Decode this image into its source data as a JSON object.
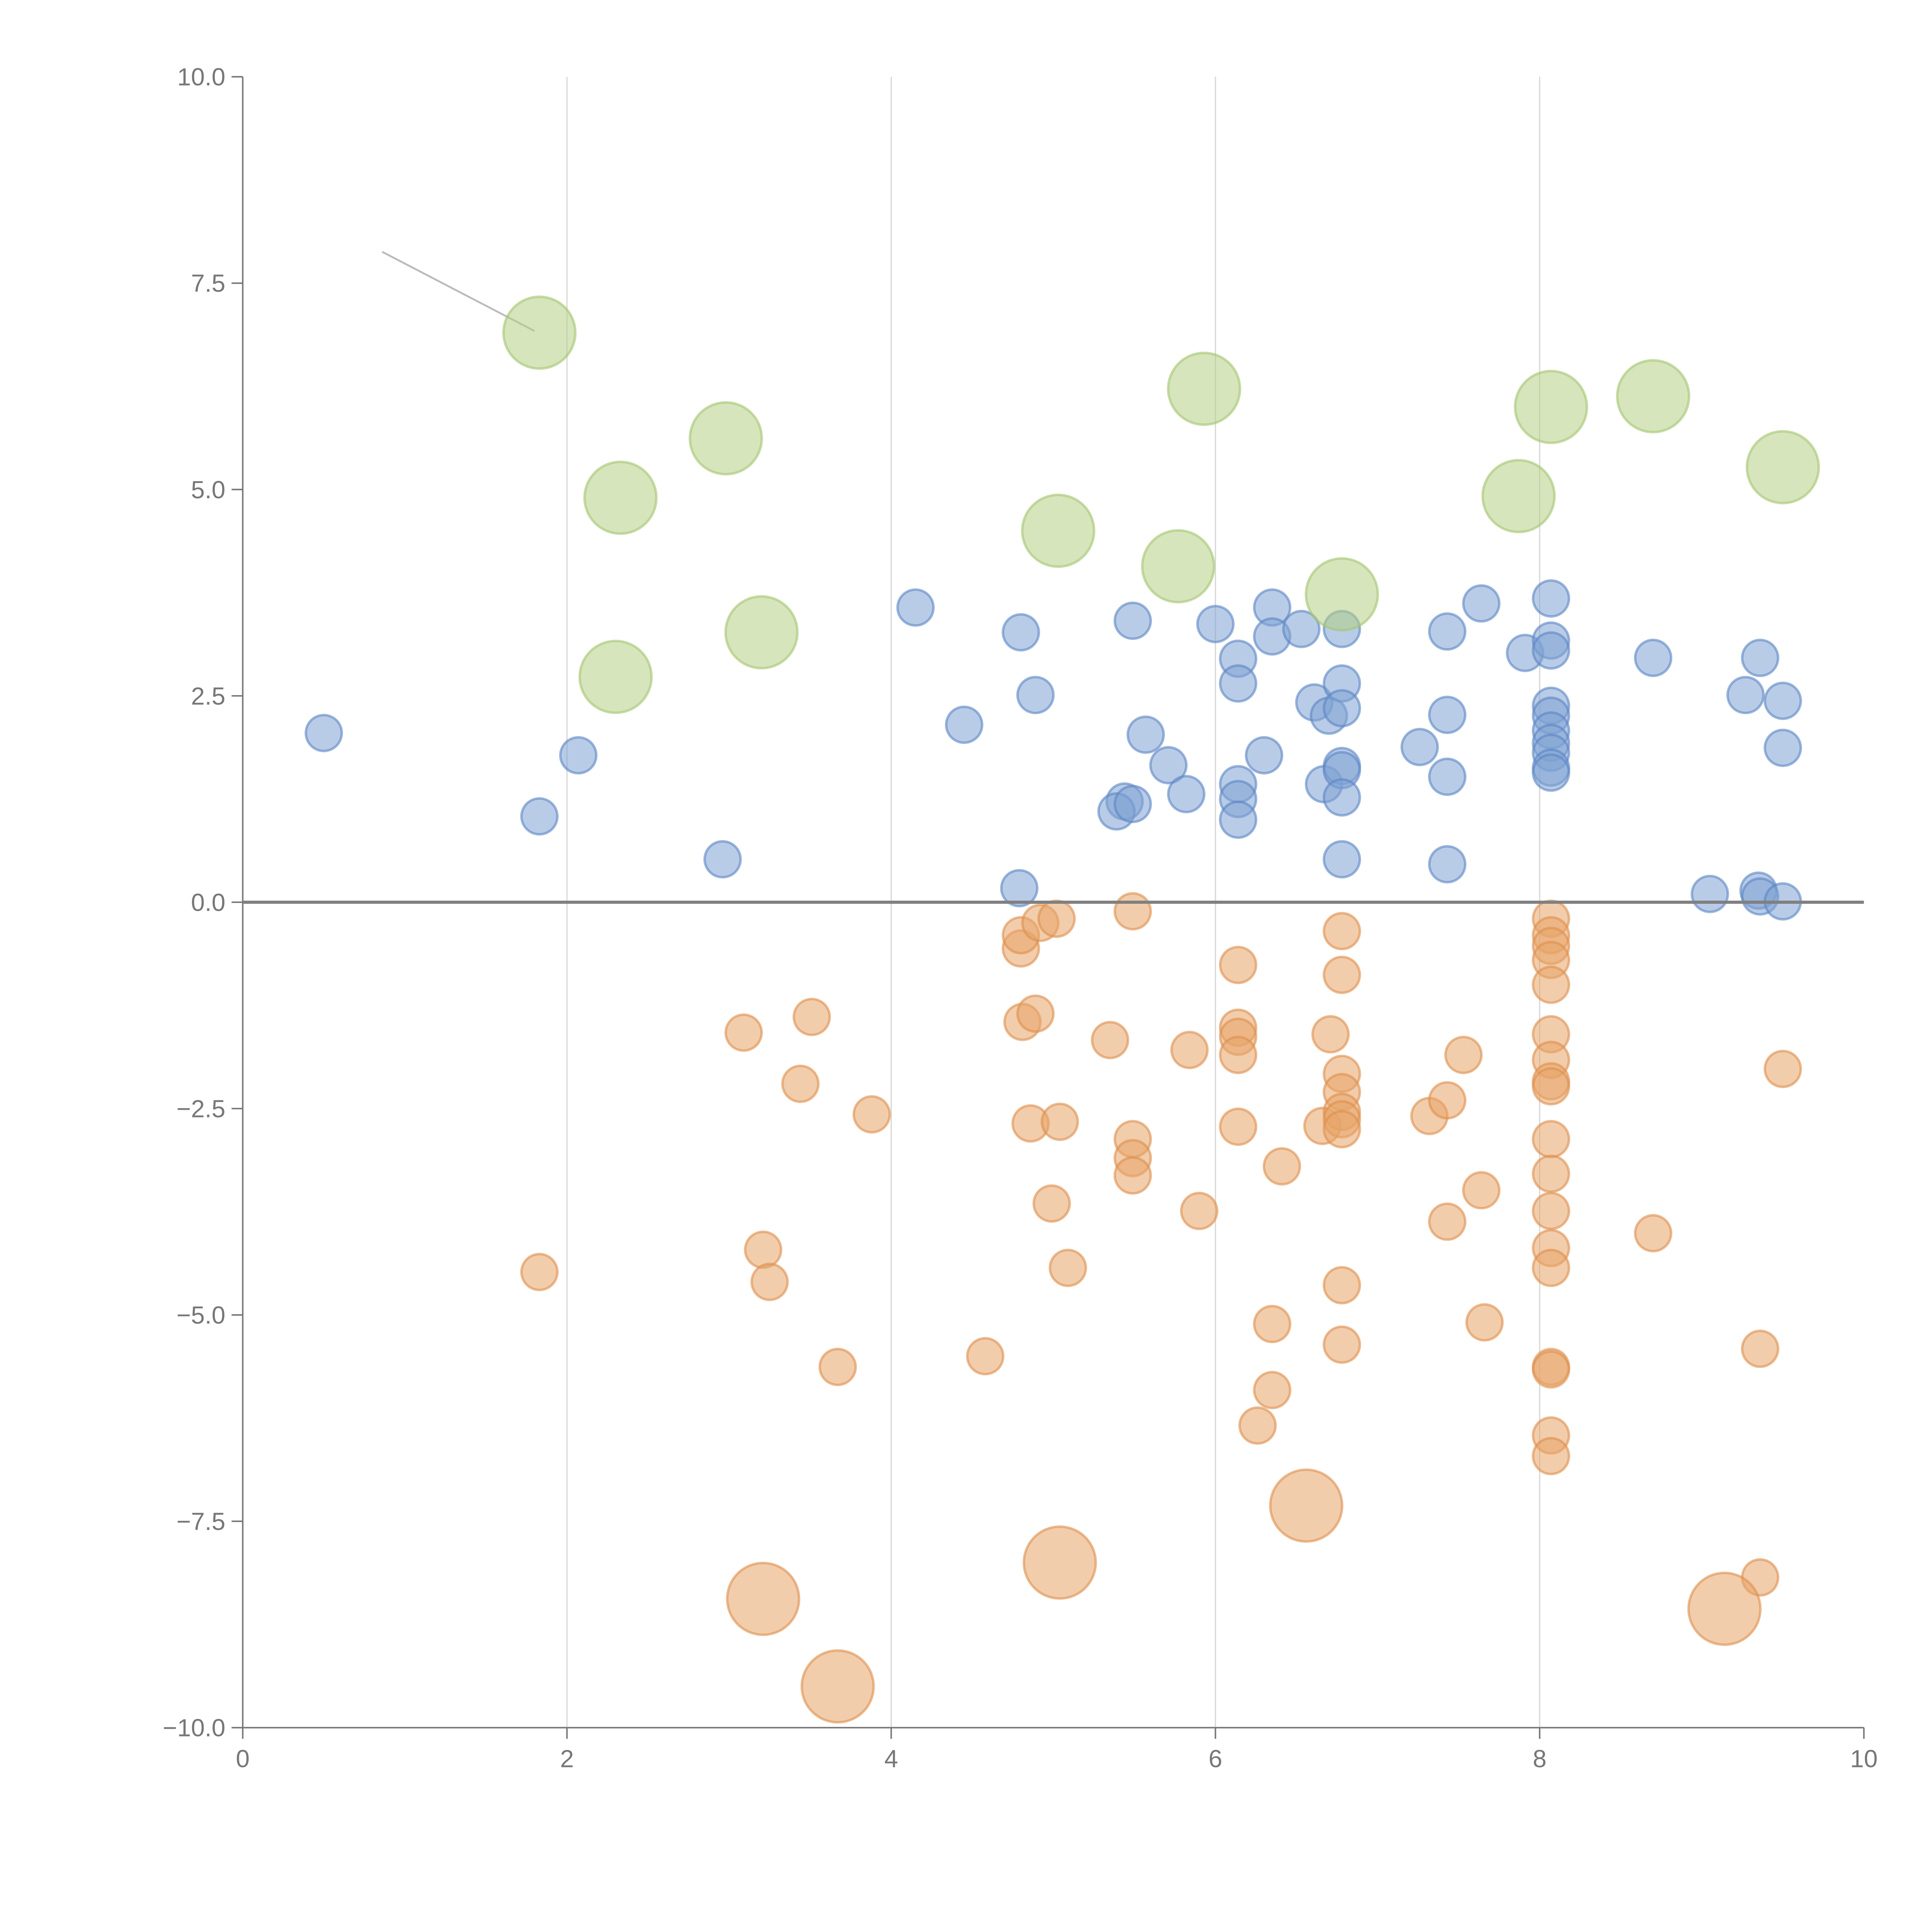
{
  "chart_data": {
    "type": "scatter",
    "title": "",
    "xlabel": "",
    "ylabel": "",
    "xlim": [
      0,
      10
    ],
    "ylim": [
      -10,
      10
    ],
    "x_ticks": [
      "0",
      "2",
      "4",
      "6",
      "8",
      "10"
    ],
    "x_tick_values": [
      0,
      2,
      4,
      6,
      8,
      10
    ],
    "y_ticks": [
      "10.0",
      "7.5",
      "5.0",
      "2.5",
      "0.0",
      "−2.5",
      "−5.0",
      "−7.5",
      "−10.0"
    ],
    "y_tick_values": [
      10,
      7.5,
      5,
      2.5,
      0,
      -2.5,
      -5,
      -7.5,
      -10
    ],
    "grid": {
      "vertical": true,
      "horizontal": false,
      "zero_line": true
    },
    "legend": "none",
    "annotation_line": {
      "from": [
        0.86,
        7.88
      ],
      "to": [
        1.8,
        6.92
      ]
    },
    "series": [
      {
        "name": "positive-small",
        "color": "#7fa2d4",
        "stroke": "#5b85c4",
        "size": "small",
        "points": [
          [
            0.5,
            2.05
          ],
          [
            1.83,
            1.04
          ],
          [
            2.07,
            1.78
          ],
          [
            2.96,
            0.52
          ],
          [
            4.15,
            3.57
          ],
          [
            4.45,
            2.15
          ],
          [
            4.8,
            3.27
          ],
          [
            4.89,
            2.51
          ],
          [
            4.79,
            0.17
          ],
          [
            5.49,
            3.41
          ],
          [
            5.57,
            2.03
          ],
          [
            5.71,
            1.66
          ],
          [
            5.82,
            1.31
          ],
          [
            5.44,
            1.22
          ],
          [
            5.39,
            1.1
          ],
          [
            5.49,
            1.19
          ],
          [
            6.0,
            3.37
          ],
          [
            6.14,
            2.95
          ],
          [
            6.14,
            2.65
          ],
          [
            6.14,
            1.43
          ],
          [
            6.14,
            1.25
          ],
          [
            6.14,
            1.0
          ],
          [
            6.3,
            1.78
          ],
          [
            6.35,
            3.57
          ],
          [
            6.35,
            3.22
          ],
          [
            6.53,
            3.31
          ],
          [
            6.61,
            2.42
          ],
          [
            6.7,
            2.26
          ],
          [
            6.67,
            1.43
          ],
          [
            6.78,
            3.31
          ],
          [
            6.78,
            2.65
          ],
          [
            6.78,
            2.35
          ],
          [
            6.78,
            1.65
          ],
          [
            6.78,
            1.6
          ],
          [
            6.78,
            1.27
          ],
          [
            6.78,
            0.52
          ],
          [
            7.26,
            1.88
          ],
          [
            7.43,
            3.28
          ],
          [
            7.43,
            2.27
          ],
          [
            7.43,
            1.52
          ],
          [
            7.43,
            0.46
          ],
          [
            7.64,
            3.62
          ],
          [
            7.91,
            3.02
          ],
          [
            8.07,
            3.68
          ],
          [
            8.07,
            3.17
          ],
          [
            8.07,
            3.05
          ],
          [
            8.07,
            2.38
          ],
          [
            8.07,
            2.26
          ],
          [
            8.07,
            2.08
          ],
          [
            8.07,
            1.93
          ],
          [
            8.07,
            1.81
          ],
          [
            8.07,
            1.63
          ],
          [
            8.07,
            1.57
          ],
          [
            8.7,
            2.96
          ],
          [
            9.05,
            0.1
          ],
          [
            9.27,
            2.51
          ],
          [
            9.36,
            2.96
          ],
          [
            9.35,
            0.14
          ],
          [
            9.36,
            0.07
          ],
          [
            9.5,
            2.44
          ],
          [
            9.5,
            1.87
          ],
          [
            9.5,
            0.01
          ]
        ]
      },
      {
        "name": "negative-small",
        "color": "#e8a468",
        "stroke": "#de8f4c",
        "size": "small",
        "points": [
          [
            1.83,
            -4.48
          ],
          [
            3.09,
            -1.58
          ],
          [
            3.21,
            -4.21
          ],
          [
            3.25,
            -4.6
          ],
          [
            3.44,
            -2.2
          ],
          [
            3.51,
            -1.39
          ],
          [
            3.67,
            -5.63
          ],
          [
            3.88,
            -2.57
          ],
          [
            4.58,
            -5.5
          ],
          [
            4.8,
            -0.56
          ],
          [
            4.8,
            -0.4
          ],
          [
            4.81,
            -1.45
          ],
          [
            4.89,
            -1.35
          ],
          [
            4.92,
            -0.25
          ],
          [
            5.02,
            -0.2
          ],
          [
            4.86,
            -2.68
          ],
          [
            5.04,
            -2.66
          ],
          [
            4.99,
            -3.65
          ],
          [
            5.09,
            -4.43
          ],
          [
            5.35,
            -1.67
          ],
          [
            5.49,
            -0.11
          ],
          [
            5.49,
            -2.87
          ],
          [
            5.49,
            -3.1
          ],
          [
            5.49,
            -3.31
          ],
          [
            5.84,
            -1.79
          ],
          [
            5.9,
            -3.74
          ],
          [
            6.14,
            -0.76
          ],
          [
            6.14,
            -1.52
          ],
          [
            6.14,
            -1.63
          ],
          [
            6.14,
            -1.85
          ],
          [
            6.14,
            -2.72
          ],
          [
            6.26,
            -6.34
          ],
          [
            6.35,
            -5.11
          ],
          [
            6.35,
            -5.91
          ],
          [
            6.41,
            -3.2
          ],
          [
            6.66,
            -2.71
          ],
          [
            6.71,
            -1.6
          ],
          [
            6.78,
            -0.35
          ],
          [
            6.78,
            -0.88
          ],
          [
            6.78,
            -2.08
          ],
          [
            6.78,
            -2.3
          ],
          [
            6.78,
            -2.54
          ],
          [
            6.78,
            -2.63
          ],
          [
            6.78,
            -2.75
          ],
          [
            6.78,
            -4.64
          ],
          [
            6.78,
            -5.36
          ],
          [
            7.32,
            -2.59
          ],
          [
            7.43,
            -2.4
          ],
          [
            7.43,
            -3.87
          ],
          [
            7.53,
            -1.85
          ],
          [
            7.64,
            -3.49
          ],
          [
            7.66,
            -5.09
          ],
          [
            8.07,
            -0.2
          ],
          [
            8.07,
            -0.4
          ],
          [
            8.07,
            -0.53
          ],
          [
            8.07,
            -0.7
          ],
          [
            8.07,
            -1.0
          ],
          [
            8.07,
            -1.6
          ],
          [
            8.07,
            -1.91
          ],
          [
            8.07,
            -2.17
          ],
          [
            8.07,
            -2.23
          ],
          [
            8.07,
            -2.87
          ],
          [
            8.07,
            -3.29
          ],
          [
            8.07,
            -3.74
          ],
          [
            8.07,
            -4.19
          ],
          [
            8.07,
            -4.43
          ],
          [
            8.07,
            -5.63
          ],
          [
            8.07,
            -5.66
          ],
          [
            8.07,
            -6.46
          ],
          [
            8.07,
            -6.71
          ],
          [
            8.7,
            -4.01
          ],
          [
            9.36,
            -5.41
          ],
          [
            9.36,
            -8.18
          ],
          [
            9.5,
            -2.02
          ]
        ]
      },
      {
        "name": "negative-large",
        "color": "#e8a468",
        "stroke": "#de8f4c",
        "size": "large",
        "points": [
          [
            3.21,
            -8.44
          ],
          [
            3.67,
            -9.5
          ],
          [
            5.04,
            -8.0
          ],
          [
            6.56,
            -7.31
          ],
          [
            9.14,
            -8.56
          ]
        ]
      },
      {
        "name": "positive-large",
        "color": "#b5cf84",
        "stroke": "#a5c472",
        "size": "large",
        "points": [
          [
            1.83,
            6.9
          ],
          [
            2.33,
            4.9
          ],
          [
            2.98,
            5.62
          ],
          [
            2.3,
            2.73
          ],
          [
            3.2,
            3.27
          ],
          [
            5.03,
            4.5
          ],
          [
            5.77,
            4.07
          ],
          [
            5.93,
            6.22
          ],
          [
            6.78,
            3.73
          ],
          [
            7.87,
            4.92
          ],
          [
            8.07,
            6.0
          ],
          [
            8.7,
            6.13
          ],
          [
            9.5,
            5.27
          ]
        ]
      }
    ]
  }
}
